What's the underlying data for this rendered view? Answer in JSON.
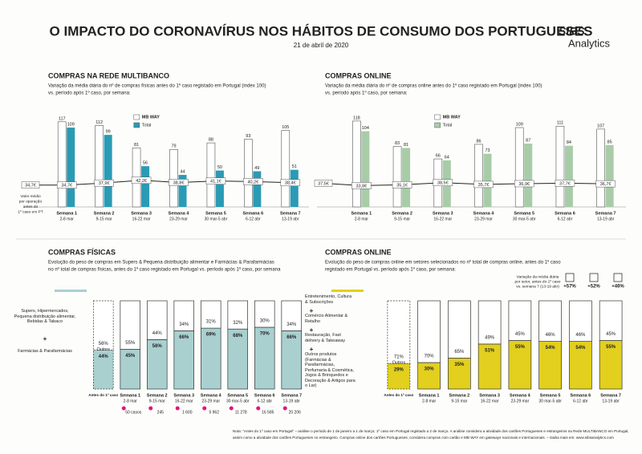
{
  "header": {
    "title": "O IMPACTO DO CORONAVÍRUS NOS HÁBITOS DE CONSUMO DOS PORTUGUESES",
    "date": "21 de abril de 2020",
    "logo": "SIBS",
    "logo_sub": "Analytics"
  },
  "chart_data": [
    {
      "type": "bar",
      "title": "COMPRAS NA REDE MULTIBANCO",
      "subtitle": [
        "Variação da média diária do nº de compras físicas antes do 1º caso registado em Portugal (index 100)",
        "vs. período após 1º caso, por semana:"
      ],
      "categories": [
        "Semana 1",
        "Semana 2",
        "Semana 3",
        "Semana 4",
        "Semana 5",
        "Semana 6",
        "Semana 7"
      ],
      "dates": [
        "2-8 mar",
        "9-15 mar",
        "16-22 mar",
        "23-29 mar",
        "30 mar-5 abr",
        "6-12 abr",
        "13-19 abr"
      ],
      "ylim": [
        0,
        130
      ],
      "y2lim": [
        0,
        150
      ],
      "series": [
        {
          "name": "MB WAY",
          "color": "#ffffff",
          "values": [
            117,
            112,
            81,
            79,
            88,
            93,
            105
          ]
        },
        {
          "name": "Total",
          "color": "#2a9bb5",
          "values": [
            109,
            99,
            56,
            44,
            50,
            49,
            51
          ]
        },
        {
          "axis": "y2",
          "color": "#222222",
          "values": [
            34.7,
            37.9,
            42.2,
            38.8,
            41.1,
            40.2,
            38.4
          ],
          "value_labels": [
            "34,7€",
            "37,9€",
            "42,2€",
            "38,8€",
            "41,1€",
            "40,2€",
            "38,4€"
          ]
        }
      ],
      "reference": {
        "label": [
          "Valor médio",
          "por operação",
          "antes do",
          "1º caso em PT"
        ],
        "value": 34.7,
        "value_label": "34,7€"
      }
    },
    {
      "type": "bar",
      "title": "COMPRAS ONLINE",
      "subtitle": [
        "Variação da média diária do nº de compras online antes do 1º caso registado em Portugal (index 100)",
        "vs. período após 1º caso, por semana:"
      ],
      "categories": [
        "Semana 1",
        "Semana 2",
        "Semana 3",
        "Semana 4",
        "Semana 5",
        "Semana 6",
        "Semana 7"
      ],
      "dates": [
        "2-8 mar",
        "9-15 mar",
        "16-22 mar",
        "23-29 mar",
        "30 mar-5 abr",
        "6-12 abr",
        "13-19 abr"
      ],
      "ylim": [
        0,
        130
      ],
      "y2lim": [
        0,
        150
      ],
      "series": [
        {
          "name": "MB WAY",
          "color": "#ffffff",
          "values": [
            118,
            83,
            66,
            86,
            109,
            111,
            107
          ]
        },
        {
          "name": "Total",
          "color": "#a8cca8",
          "values": [
            104,
            81,
            64,
            73,
            87,
            84,
            85
          ]
        },
        {
          "axis": "y2",
          "color": "#222222",
          "values": [
            33.8,
            35.1,
            38.5,
            35.7,
            36.9,
            37.7,
            36.7
          ],
          "value_labels": [
            "33,8€",
            "35,1€",
            "38,5€",
            "35,7€",
            "36,9€",
            "37,7€",
            "36,7€"
          ]
        }
      ],
      "reference": {
        "value": 37.5,
        "value_label": "37,5€"
      }
    },
    {
      "type": "stacked",
      "title": "COMPRAS FÍSICAS",
      "subtitle": [
        "Evolução do peso de compras em Supers & Pequena distribuição alimentar e Farmácias & Parafarmácias",
        "no nº total de compras físicas, antes do 1º caso registado em Portugal vs. período após 1º caso, por semana"
      ],
      "categories": [
        "Antes do 1º caso",
        "Semana 1",
        "Semana 2",
        "Semana 3",
        "Semana 4",
        "Semana 5",
        "Semana 6",
        "Semana 7"
      ],
      "dates": [
        null,
        "2-8 mar",
        "9-15 mar",
        "16-22 mar",
        "23-29 mar",
        "30 mar-5 abr",
        "6-12 abr",
        "13-19 abr"
      ],
      "ylim": [
        0,
        100
      ],
      "legend_items": [
        "Supers, Hipermercados, Pequena distribuição alimentar, Bebidas & Tabaco",
        "Farmácias & Parafarmácias"
      ],
      "series": [
        {
          "color": "#a9d0cf",
          "values": [
            44,
            45,
            56,
            66,
            69,
            68,
            70,
            66
          ],
          "value_labels": [
            "44%",
            "45%",
            "56%",
            "66%",
            "69%",
            "68%",
            "70%",
            "66%"
          ]
        },
        {
          "name": "Outros",
          "color": "#ffffff",
          "values": [
            56,
            55,
            44,
            34,
            31,
            32,
            30,
            34
          ],
          "value_labels": [
            "56%",
            "55%",
            "44%",
            "34%",
            "31%",
            "32%",
            "30%",
            "34%"
          ]
        }
      ],
      "cases": {
        "values": [
          50,
          245,
          1600,
          5962,
          11278,
          16585,
          20206
        ],
        "value_labels": [
          "50 casos",
          "245",
          "1 600",
          "5 962",
          "11 278",
          "16 585",
          "20 206"
        ],
        "color": "#e0157a"
      }
    },
    {
      "type": "stacked",
      "title": "COMPRAS ONLINE",
      "subtitle": [
        "Evolução do peso de compras online em setores selecionados no nº total de compras online, antes do 1º caso",
        "registado em Portugal vs. período após 1º caso, por semana:"
      ],
      "categories": [
        "Antes do 1º caso",
        "Semana 1",
        "Semana 2",
        "Semana 3",
        "Semana 4",
        "Semana 5",
        "Semana 6",
        "Semana 7"
      ],
      "dates": [
        null,
        "2-8 mar",
        "9-15 mar",
        "16-22 mar",
        "23-29 mar",
        "30 mar-5 abr",
        "6-12 abr",
        "13-19 abr"
      ],
      "ylim": [
        0,
        100
      ],
      "legend_items": [
        "Entretenimento, Cultura & Subscrições",
        "Comércio Alimentar & Retalho",
        "Restauração, Fast delivery & Takeaway",
        "Outros produtos (Farmácias & Parafarmácias, Perfumaria & Cosmética, Jogos & Brinquedos e Decoração & Artigos para o Lar)"
      ],
      "series": [
        {
          "color": "#e2cf1e",
          "values": [
            29,
            30,
            35,
            51,
            55,
            54,
            54,
            55
          ],
          "value_labels": [
            "29%",
            "30%",
            "35%",
            "51%",
            "55%",
            "54%",
            "54%",
            "55%"
          ]
        },
        {
          "name": "Outros",
          "color": "#ffffff",
          "values": [
            71,
            70,
            65,
            49,
            45,
            46,
            46,
            45
          ],
          "value_labels": [
            "71%",
            "70%",
            "65%",
            "49%",
            "45%",
            "46%",
            "46%",
            "45%"
          ]
        }
      ],
      "variation": {
        "title": [
          "Variação da média diária",
          "por setor, antes do 1º caso",
          "vs. semana 7 (13-19 abr)"
        ],
        "values": [
          57,
          52,
          46
        ],
        "value_labels": [
          "+57%",
          "+52%",
          "+46%"
        ]
      }
    }
  ],
  "footnote": [
    "Nota: \"Antes do 1º caso em Portugal\" – análise o período de 1 de janeiro a 1 de março; 1º caso em Portugal registado a 2 de março. A análise considera a atividade dos cartões Portugueses e estrangeiros na Rede MULTIBANCO em Portugal,",
    "assim como a atividade dos cartões Portugueses no estrangeiro. Compras online dos cartões Portugueses; considera compras com cartão e MB WAY em gateways nacionais e internacionais. – Saiba mais em: www.sibsanalytics.com"
  ]
}
